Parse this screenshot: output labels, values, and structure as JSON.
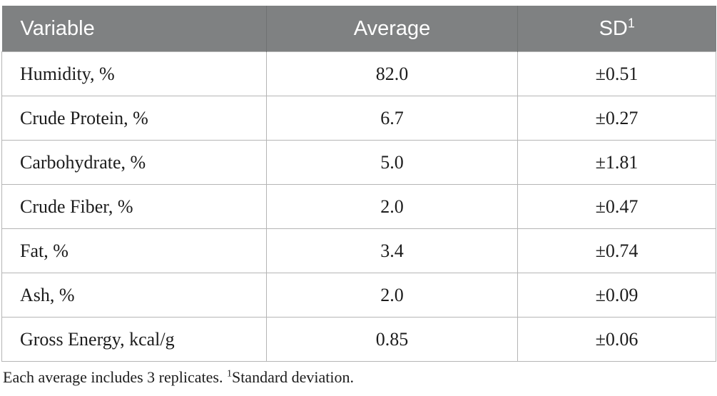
{
  "colors": {
    "header_bg": "#7f8182",
    "header_text": "#ffffff",
    "header_divider": "#6f7272",
    "border": "#b5b5b5",
    "body_text": "#1c1c1c"
  },
  "table": {
    "header": {
      "variable": "Variable",
      "average": "Average",
      "sd": "SD",
      "sd_sup": "1"
    },
    "rows": [
      {
        "variable": "Humidity, %",
        "average": "82.0",
        "sd": "±0.51"
      },
      {
        "variable": "Crude Protein, %",
        "average": "6.7",
        "sd": "±0.27"
      },
      {
        "variable": "Carbohydrate, %",
        "average": "5.0",
        "sd": "±1.81"
      },
      {
        "variable": "Crude Fiber, %",
        "average": "2.0",
        "sd": "±0.47"
      },
      {
        "variable": "Fat, %",
        "average": "3.4",
        "sd": "±0.74"
      },
      {
        "variable": "Ash, %",
        "average": "2.0",
        "sd": "±0.09"
      },
      {
        "variable": "Gross Energy, kcal/g",
        "average": "0.85",
        "sd": "±0.06"
      }
    ],
    "footnote": {
      "text_before_sup": "Each average includes 3 replicates. ",
      "sup": "1",
      "text_after_sup": "Standard deviation."
    }
  },
  "chart_data": {
    "type": "table",
    "columns": [
      "Variable",
      "Average",
      "SD"
    ],
    "rows": [
      [
        "Humidity, %",
        82.0,
        0.51
      ],
      [
        "Crude Protein, %",
        6.7,
        0.27
      ],
      [
        "Carbohydrate, %",
        5.0,
        1.81
      ],
      [
        "Crude Fiber, %",
        2.0,
        0.47
      ],
      [
        "Fat, %",
        3.4,
        0.74
      ],
      [
        "Ash, %",
        2.0,
        0.09
      ],
      [
        "Gross Energy, kcal/g",
        0.85,
        0.06
      ]
    ],
    "notes": "SD values shown as ± in table; footnote: Each average includes 3 replicates. 1 = Standard deviation."
  }
}
